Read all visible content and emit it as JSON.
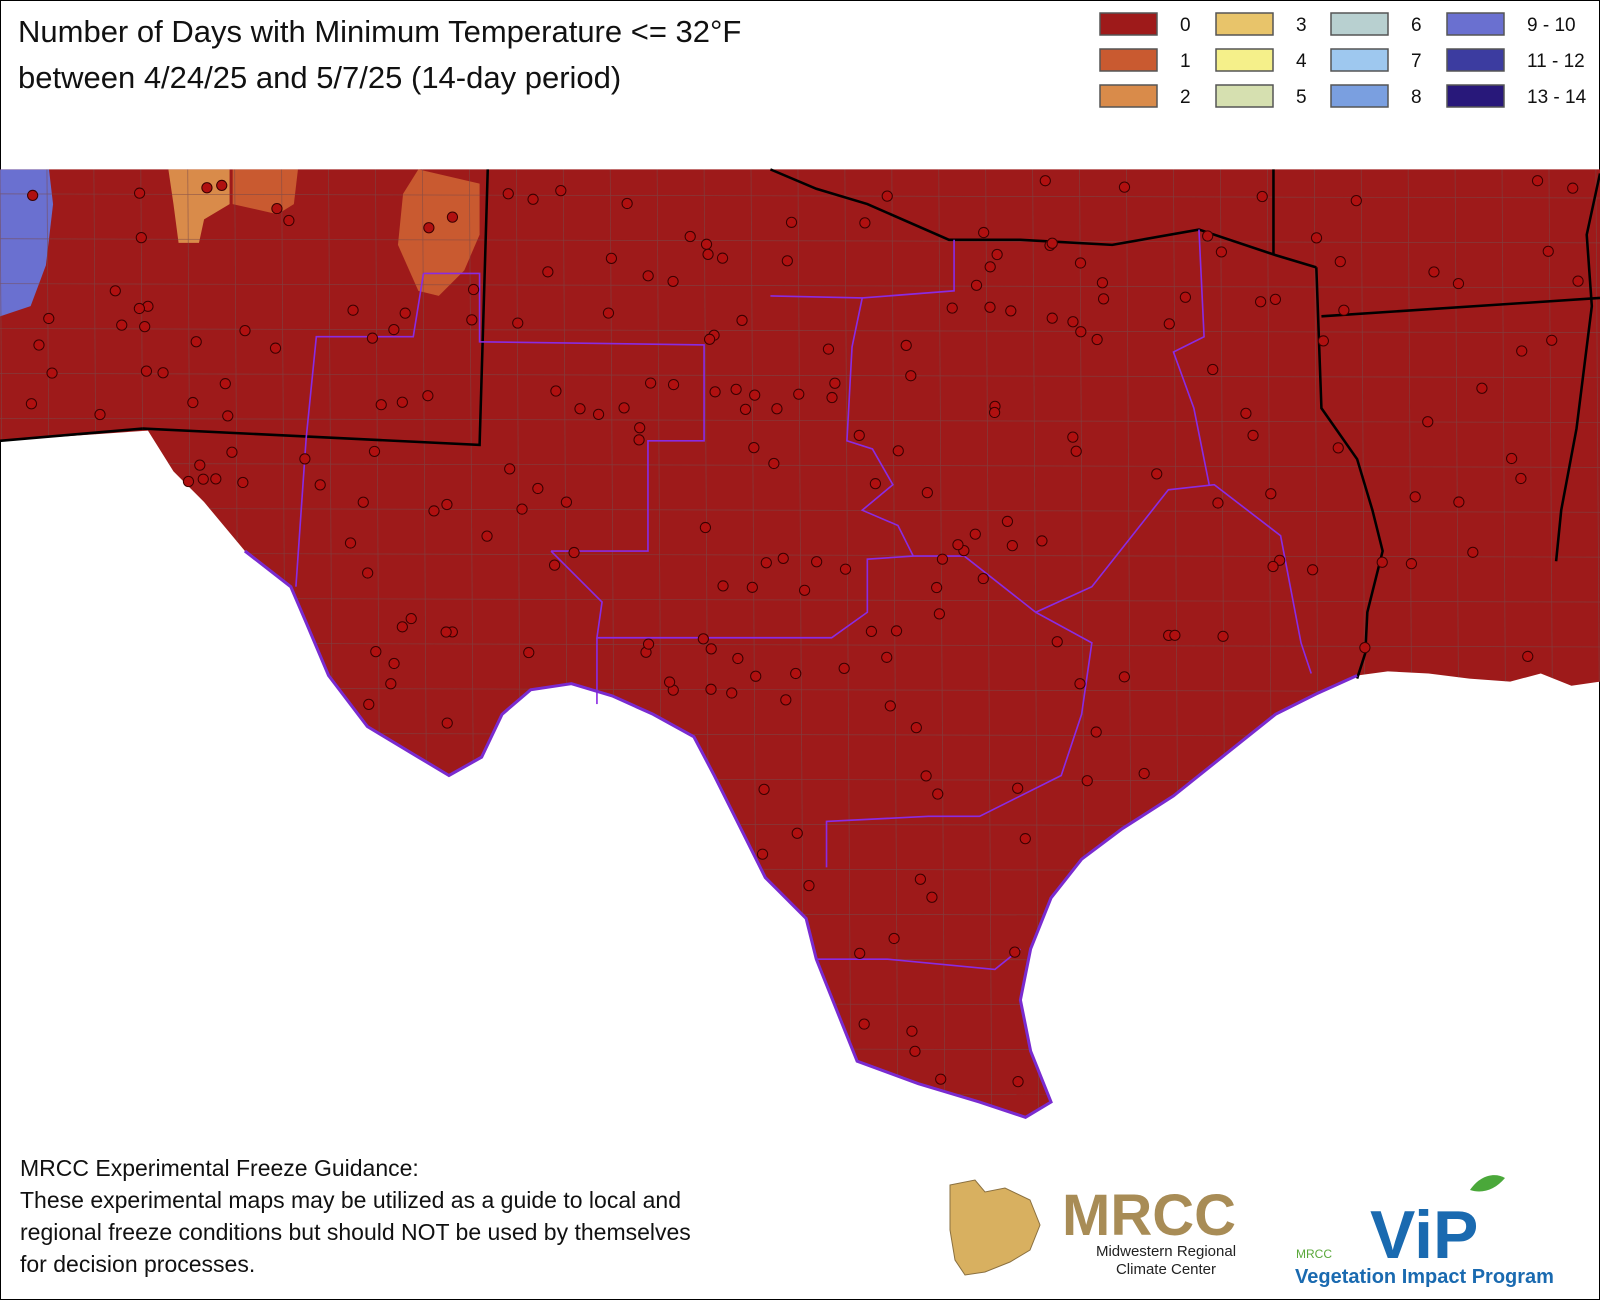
{
  "header": {
    "title_lines": [
      "Number of Days with Minimum Temperature <= 32°F",
      "between 4/24/25 and 5/7/25 (14-day period)"
    ]
  },
  "legend": [
    {
      "label": "0",
      "color": "#9e1a1a"
    },
    {
      "label": "1",
      "color": "#c95a30"
    },
    {
      "label": "2",
      "color": "#d98b4a"
    },
    {
      "label": "3",
      "color": "#e8c46a"
    },
    {
      "label": "4",
      "color": "#f5f08a"
    },
    {
      "label": "5",
      "color": "#d6e0b0"
    },
    {
      "label": "6",
      "color": "#b8d0d0"
    },
    {
      "label": "7",
      "color": "#9ec8ef"
    },
    {
      "label": "8",
      "color": "#7a9fe0"
    },
    {
      "label": "9 - 10",
      "color": "#6a70d0"
    },
    {
      "label": "11 - 12",
      "color": "#3c3ca0"
    },
    {
      "label": "13 - 14",
      "color": "#28187a"
    }
  ],
  "footer": {
    "heading": "MRCC Experimental Freeze Guidance:",
    "lines": [
      "These experimental maps may be utilized as a guide to local and",
      "regional freeze conditions but should NOT be used by themselves",
      "for decision processes."
    ]
  },
  "logos": {
    "mrcc": {
      "name": "MRCC",
      "subtitle_lines": [
        "Midwestern Regional",
        "Climate Center"
      ]
    },
    "vip": {
      "small": "MRCC",
      "name": "ViP",
      "tagline": "Vegetation Impact Program"
    }
  }
}
